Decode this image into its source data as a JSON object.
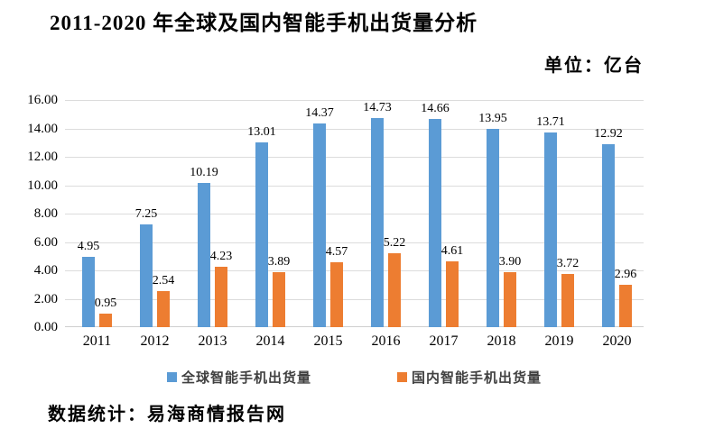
{
  "header": {
    "title": "2011-2020 年全球及国内智能手机出货量分析",
    "unit_label": "单位：亿台"
  },
  "footer": {
    "source_label": "数据统计：易海商情报告网"
  },
  "colors": {
    "bar_global": "#5B9BD5",
    "bar_domestic": "#ED7D31",
    "gridline": "#DCDCDC",
    "legend_text": "#404040"
  },
  "chart_data": {
    "type": "bar",
    "title": "2011-2020 年全球及国内智能手机出货量分析",
    "unit": "亿台",
    "categories": [
      "2011",
      "2012",
      "2013",
      "2014",
      "2015",
      "2016",
      "2017",
      "2018",
      "2019",
      "2020"
    ],
    "series": [
      {
        "name": "全球智能手机出货量",
        "key": "global",
        "color": "#5B9BD5",
        "values": [
          4.95,
          7.25,
          10.19,
          13.01,
          14.37,
          14.73,
          14.66,
          13.95,
          13.71,
          12.92
        ]
      },
      {
        "name": "国内智能手机出货量",
        "key": "domestic",
        "color": "#ED7D31",
        "values": [
          0.95,
          2.54,
          4.23,
          3.89,
          4.57,
          5.22,
          4.61,
          3.9,
          3.72,
          2.96
        ]
      }
    ],
    "ylim": [
      0,
      16
    ],
    "ytick_step": 2,
    "ytick_labels": [
      "0.00",
      "2.00",
      "4.00",
      "6.00",
      "8.00",
      "10.00",
      "12.00",
      "14.00",
      "16.00"
    ],
    "grid": true,
    "legend_position": "bottom",
    "data_labels": true,
    "value_format_decimals": 2
  }
}
